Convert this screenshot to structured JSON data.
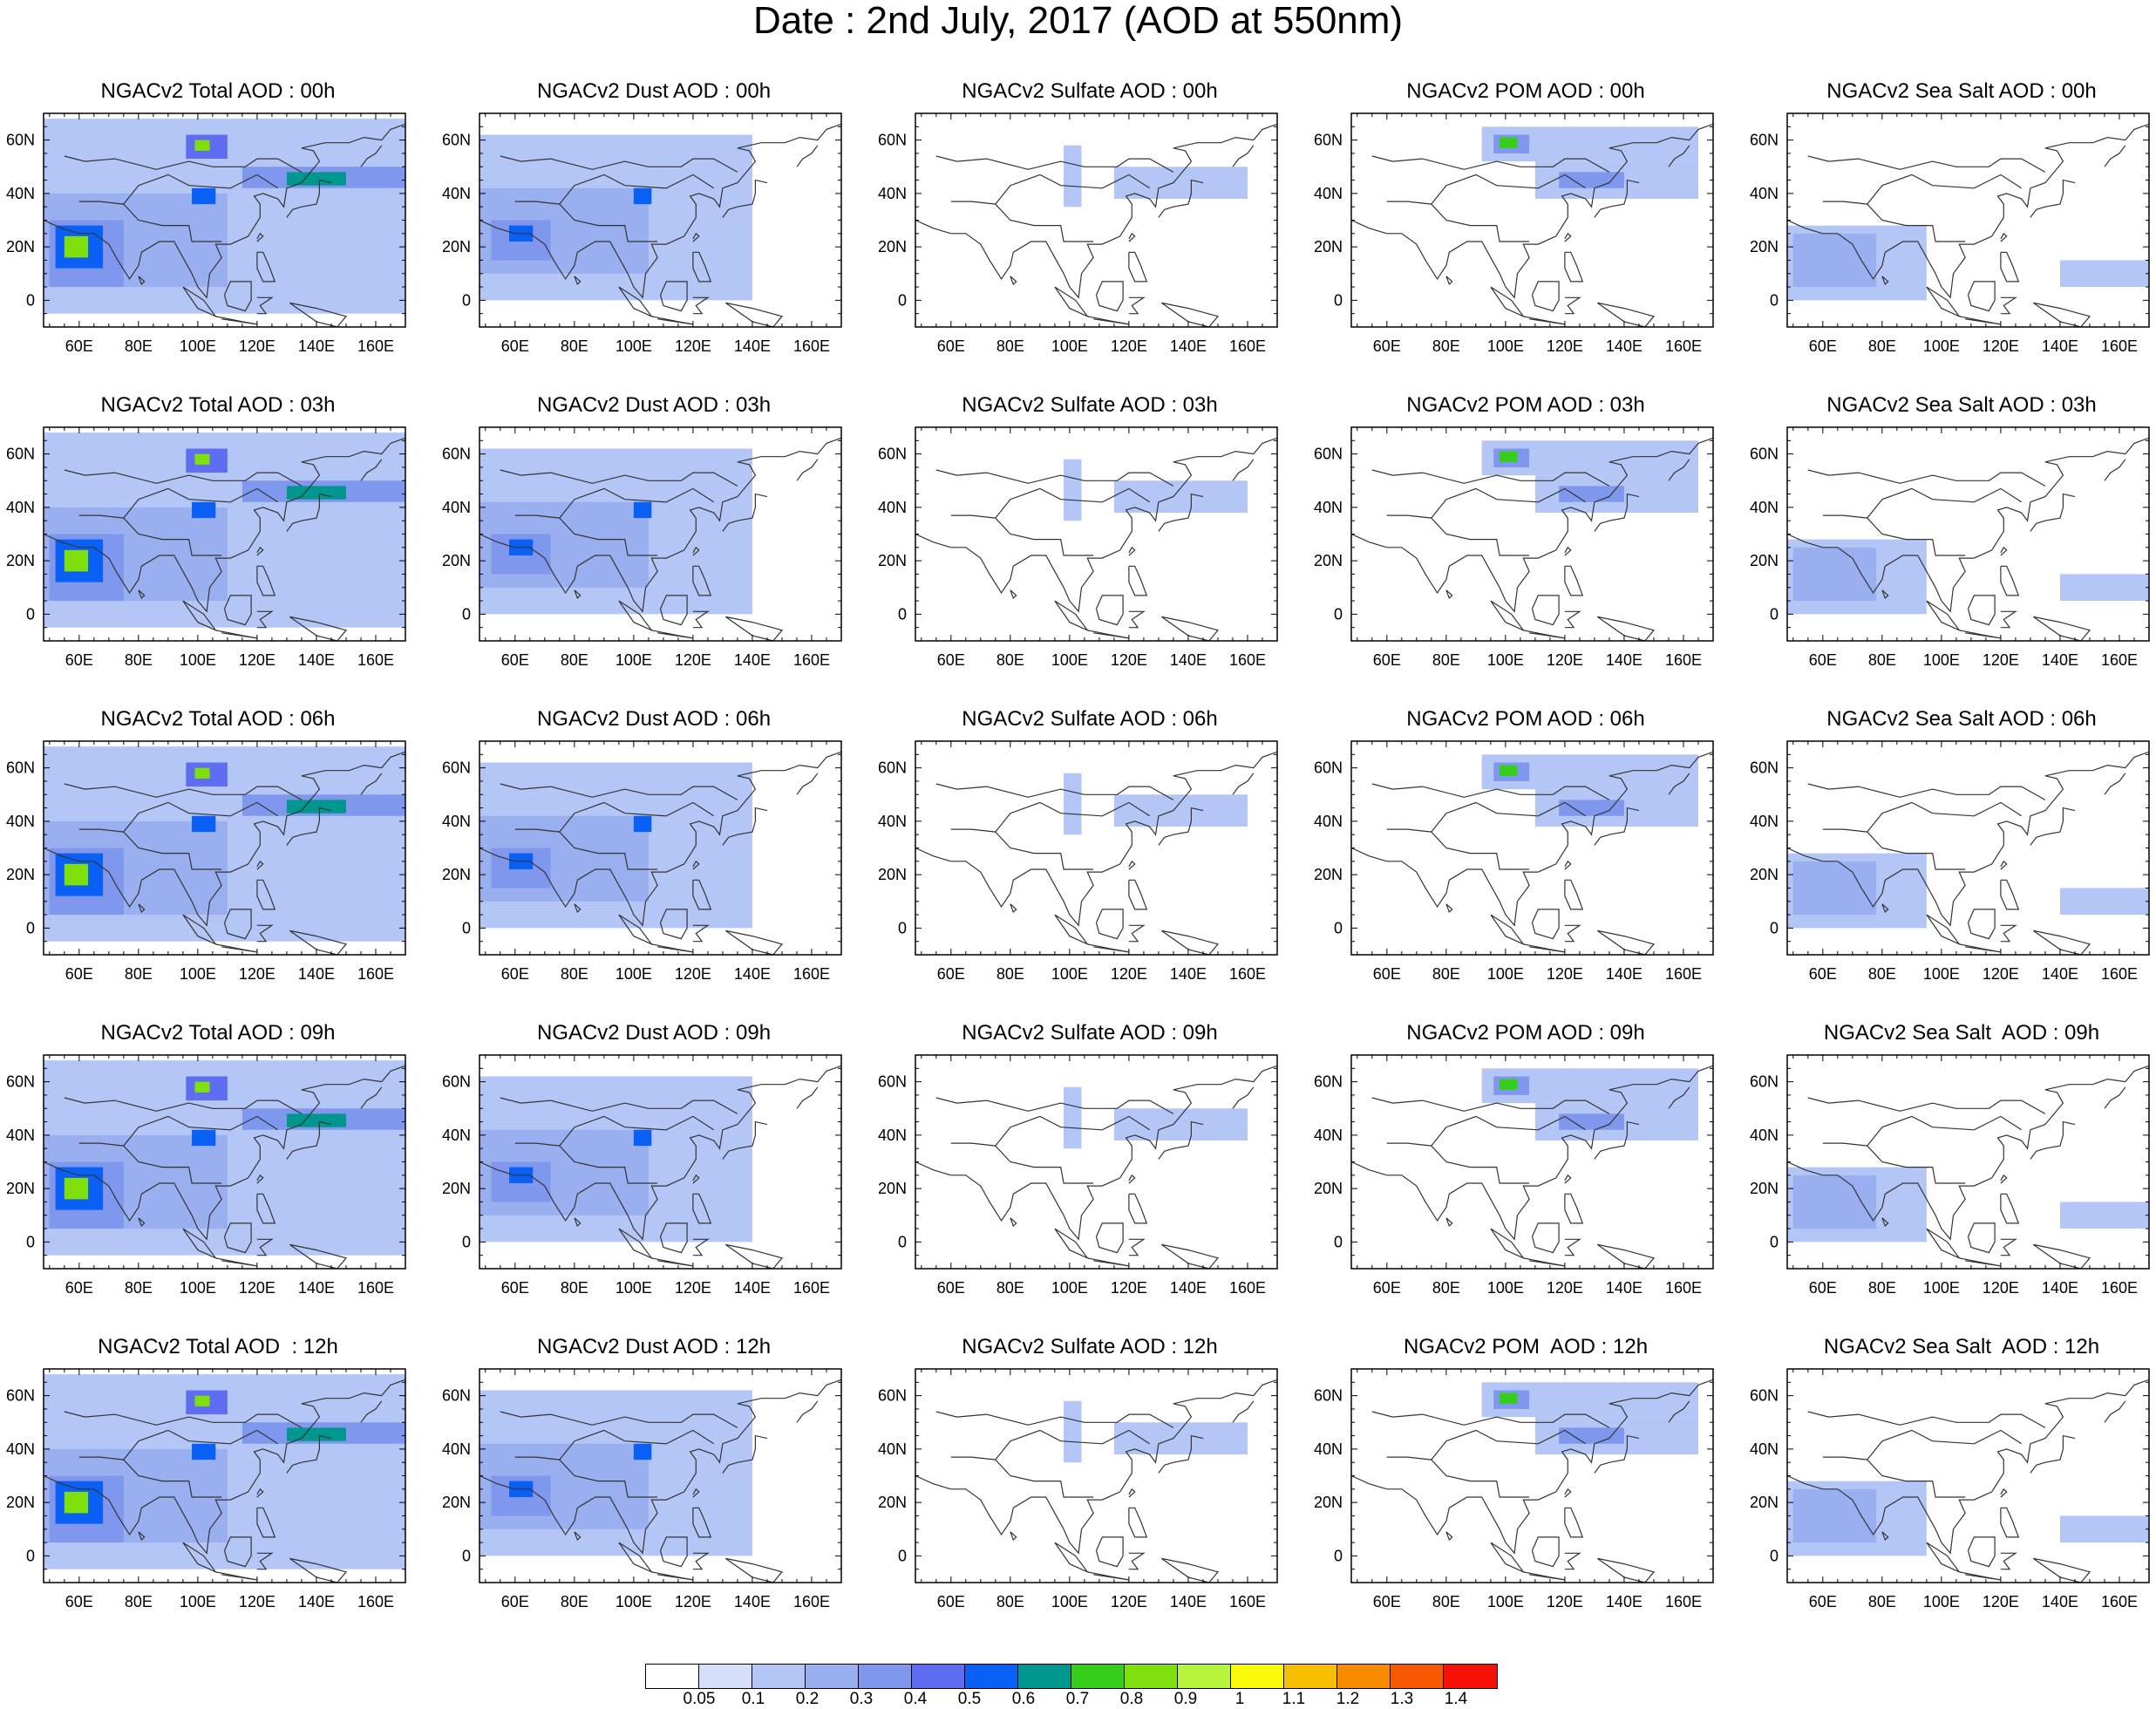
{
  "title": "Date : 2nd July, 2017 (AOD at 550nm)",
  "chart_data": {
    "type": "heatmap",
    "title": "Date : 2nd July, 2017 (AOD at 550nm)",
    "x_ticks": [
      "60E",
      "80E",
      "100E",
      "120E",
      "140E",
      "160E"
    ],
    "x_tick_values": [
      60,
      80,
      100,
      120,
      140,
      160
    ],
    "y_ticks": [
      "60N",
      "40N",
      "20N",
      "0"
    ],
    "y_tick_values": [
      60,
      40,
      20,
      0
    ],
    "xlim": [
      48,
      170
    ],
    "ylim": [
      -10,
      70
    ],
    "colorbar": {
      "levels": [
        "0.05",
        "0.1",
        "0.2",
        "0.3",
        "0.4",
        "0.5",
        "0.6",
        "0.7",
        "0.8",
        "0.9",
        "1",
        "1.1",
        "1.2",
        "1.3",
        "1.4"
      ],
      "colors": [
        "#ffffff",
        "#d5dffa",
        "#b4c6f6",
        "#99aff0",
        "#7f97ec",
        "#5f6df0",
        "#0a5ff5",
        "#00978e",
        "#35cf1b",
        "#80e00d",
        "#b6f53b",
        "#f9f90a",
        "#f8be00",
        "#f88b00",
        "#f85800",
        "#f71208"
      ]
    },
    "columns": [
      "Total",
      "Dust",
      "Sulfate",
      "POM",
      "Sea Salt"
    ],
    "rows": [
      "00h",
      "03h",
      "06h",
      "09h",
      "12h"
    ],
    "panel_titles": [
      [
        "NGACv2 Total AOD : 00h",
        "NGACv2 Dust AOD : 00h",
        "NGACv2 Sulfate AOD : 00h",
        "NGACv2 POM AOD : 00h",
        "NGACv2 Sea Salt AOD : 00h"
      ],
      [
        "NGACv2 Total AOD : 03h",
        "NGACv2 Dust AOD : 03h",
        "NGACv2 Sulfate AOD : 03h",
        "NGACv2 POM AOD : 03h",
        "NGACv2 Sea Salt AOD : 03h"
      ],
      [
        "NGACv2 Total AOD : 06h",
        "NGACv2 Dust AOD : 06h",
        "NGACv2 Sulfate AOD : 06h",
        "NGACv2 POM AOD : 06h",
        "NGACv2 Sea Salt AOD : 06h"
      ],
      [
        "NGACv2 Total AOD : 09h",
        "NGACv2 Dust AOD : 09h",
        "NGACv2 Sulfate AOD : 09h",
        "NGACv2 POM AOD : 09h",
        "NGACv2 Sea Salt  AOD : 09h"
      ],
      [
        "NGACv2 Total AOD  : 12h",
        "NGACv2 Dust AOD : 12h",
        "NGACv2 Sulfate AOD : 12h",
        "NGACv2 POM  AOD : 12h",
        "NGACv2 Sea Salt  AOD : 12h"
      ]
    ],
    "fields": {
      "Total": [
        {
          "lon": [
            48,
            170
          ],
          "lat": [
            -5,
            68
          ],
          "v": 0.1
        },
        {
          "lon": [
            48,
            110
          ],
          "lat": [
            5,
            40
          ],
          "v": 0.2
        },
        {
          "lon": [
            50,
            75
          ],
          "lat": [
            5,
            30
          ],
          "v": 0.3
        },
        {
          "lon": [
            52,
            68
          ],
          "lat": [
            12,
            28
          ],
          "v": 0.5
        },
        {
          "lon": [
            55,
            63
          ],
          "lat": [
            16,
            24
          ],
          "v": 0.8
        },
        {
          "lon": [
            96,
            110
          ],
          "lat": [
            53,
            62
          ],
          "v": 0.4
        },
        {
          "lon": [
            99,
            104
          ],
          "lat": [
            56,
            60
          ],
          "v": 0.8
        },
        {
          "lon": [
            98,
            106
          ],
          "lat": [
            36,
            42
          ],
          "v": 0.5
        },
        {
          "lon": [
            115,
            170
          ],
          "lat": [
            42,
            50
          ],
          "v": 0.3
        },
        {
          "lon": [
            130,
            150
          ],
          "lat": [
            43,
            48
          ],
          "v": 0.6
        }
      ],
      "Dust": [
        {
          "lon": [
            48,
            140
          ],
          "lat": [
            0,
            62
          ],
          "v": 0.1
        },
        {
          "lon": [
            48,
            105
          ],
          "lat": [
            10,
            42
          ],
          "v": 0.2
        },
        {
          "lon": [
            52,
            72
          ],
          "lat": [
            15,
            30
          ],
          "v": 0.3
        },
        {
          "lon": [
            58,
            66
          ],
          "lat": [
            22,
            28
          ],
          "v": 0.5
        },
        {
          "lon": [
            100,
            106
          ],
          "lat": [
            36,
            42
          ],
          "v": 0.5
        }
      ],
      "Sulfate": [
        {
          "lon": [
            98,
            104
          ],
          "lat": [
            35,
            58
          ],
          "v": 0.1
        },
        {
          "lon": [
            115,
            160
          ],
          "lat": [
            38,
            50
          ],
          "v": 0.1
        }
      ],
      "POM": [
        {
          "lon": [
            92,
            165
          ],
          "lat": [
            52,
            65
          ],
          "v": 0.1
        },
        {
          "lon": [
            110,
            165
          ],
          "lat": [
            38,
            52
          ],
          "v": 0.1
        },
        {
          "lon": [
            96,
            108
          ],
          "lat": [
            55,
            62
          ],
          "v": 0.3
        },
        {
          "lon": [
            98,
            104
          ],
          "lat": [
            57,
            61
          ],
          "v": 0.7
        },
        {
          "lon": [
            118,
            140
          ],
          "lat": [
            42,
            48
          ],
          "v": 0.3
        }
      ],
      "Sea Salt": [
        {
          "lon": [
            48,
            95
          ],
          "lat": [
            0,
            28
          ],
          "v": 0.1
        },
        {
          "lon": [
            50,
            78
          ],
          "lat": [
            5,
            25
          ],
          "v": 0.2
        },
        {
          "lon": [
            140,
            170
          ],
          "lat": [
            5,
            15
          ],
          "v": 0.1
        }
      ]
    },
    "coastline": [
      [
        [
          60,
          25
        ],
        [
          65,
          25
        ],
        [
          70,
          21
        ],
        [
          73,
          15
        ],
        [
          77,
          8
        ],
        [
          80,
          13
        ],
        [
          81,
          18
        ],
        [
          87,
          22
        ],
        [
          92,
          22
        ],
        [
          95,
          16
        ],
        [
          98,
          10
        ],
        [
          100,
          5
        ],
        [
          103,
          1
        ],
        [
          104,
          10
        ],
        [
          108,
          16
        ],
        [
          106,
          21
        ],
        [
          111,
          21
        ],
        [
          117,
          24
        ],
        [
          121,
          31
        ],
        [
          121,
          36
        ],
        [
          119,
          39
        ],
        [
          122,
          40
        ],
        [
          127,
          38
        ],
        [
          129,
          35
        ],
        [
          130,
          42
        ],
        [
          135,
          44
        ],
        [
          141,
          52
        ],
        [
          139,
          56
        ],
        [
          135,
          57
        ],
        [
          143,
          59
        ],
        [
          151,
          59
        ],
        [
          156,
          61
        ],
        [
          162,
          60
        ],
        [
          165,
          64
        ],
        [
          170,
          66
        ]
      ],
      [
        [
          48,
          30
        ],
        [
          54,
          27
        ],
        [
          57,
          26
        ],
        [
          60,
          25
        ]
      ],
      [
        [
          55,
          54
        ],
        [
          62,
          52
        ],
        [
          72,
          53
        ],
        [
          86,
          49
        ],
        [
          97,
          52
        ],
        [
          105,
          50
        ],
        [
          116,
          50
        ],
        [
          120,
          53
        ],
        [
          127,
          53
        ],
        [
          135,
          48
        ]
      ],
      [
        [
          60,
          37
        ],
        [
          67,
          37
        ],
        [
          75,
          36
        ],
        [
          80,
          30
        ],
        [
          88,
          28
        ],
        [
          97,
          28
        ],
        [
          98,
          22
        ],
        [
          102,
          22
        ],
        [
          108,
          22
        ]
      ],
      [
        [
          75,
          36
        ],
        [
          80,
          43
        ],
        [
          90,
          47
        ],
        [
          97,
          43
        ],
        [
          111,
          42
        ],
        [
          120,
          47
        ],
        [
          127,
          42
        ]
      ],
      [
        [
          130,
          31
        ],
        [
          132,
          34
        ],
        [
          135,
          35
        ],
        [
          140,
          36
        ],
        [
          141,
          40
        ],
        [
          141,
          45
        ],
        [
          145,
          44
        ]
      ],
      [
        [
          120,
          23
        ],
        [
          121,
          25
        ],
        [
          122,
          24
        ],
        [
          120,
          22
        ]
      ],
      [
        [
          120,
          18
        ],
        [
          122,
          18
        ],
        [
          124,
          13
        ],
        [
          126,
          7
        ],
        [
          122,
          7
        ],
        [
          120,
          12
        ],
        [
          120,
          18
        ]
      ],
      [
        [
          80,
          9
        ],
        [
          82,
          7
        ],
        [
          81,
          6
        ],
        [
          80,
          9
        ]
      ],
      [
        [
          95,
          5
        ],
        [
          102,
          0
        ],
        [
          106,
          -6
        ],
        [
          100,
          -3
        ],
        [
          95,
          5
        ]
      ],
      [
        [
          106,
          -6
        ],
        [
          115,
          -8
        ],
        [
          120,
          -9
        ],
        [
          108,
          -7
        ]
      ],
      [
        [
          109,
          2
        ],
        [
          111,
          7
        ],
        [
          118,
          7
        ],
        [
          118,
          0
        ],
        [
          116,
          -4
        ],
        [
          110,
          -2
        ],
        [
          109,
          2
        ]
      ],
      [
        [
          120,
          1
        ],
        [
          125,
          1
        ],
        [
          121,
          -2
        ],
        [
          123,
          -5
        ],
        [
          120,
          -5
        ]
      ],
      [
        [
          131,
          -1
        ],
        [
          140,
          -3
        ],
        [
          150,
          -6
        ],
        [
          147,
          -10
        ],
        [
          140,
          -8
        ],
        [
          131,
          -1
        ]
      ],
      [
        [
          155,
          50
        ],
        [
          157,
          53
        ],
        [
          160,
          55
        ],
        [
          162,
          58
        ]
      ]
    ]
  }
}
